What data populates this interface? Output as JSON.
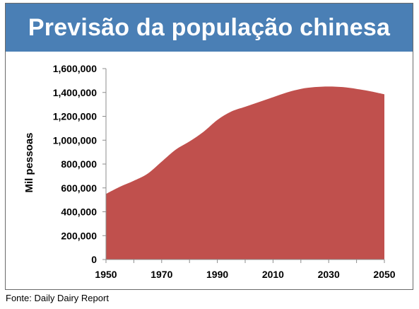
{
  "source_text": "Fonte: Daily Dairy Report",
  "colors": {
    "title_bg": "#4a7fb5",
    "area_fill": "#c0504d"
  },
  "chart_data": {
    "type": "area",
    "title": "Previsão da população chinesa",
    "xlabel": "",
    "ylabel": "Mil pessoas",
    "xlim": [
      1950,
      2050
    ],
    "ylim": [
      0,
      1600000
    ],
    "x_ticks": [
      "1950",
      "1970",
      "1990",
      "2010",
      "2030",
      "2050"
    ],
    "y_ticks": [
      "0",
      "200,000",
      "400,000",
      "600,000",
      "800,000",
      "1,000,000",
      "1,200,000",
      "1,400,000",
      "1,600,000"
    ],
    "grid": false,
    "legend": "none",
    "series": [
      {
        "x": [
          1950,
          1955,
          1960,
          1965,
          1970,
          1975,
          1980,
          1985,
          1990,
          1995,
          2000,
          2005,
          2010,
          2015,
          2020,
          2025,
          2030,
          2035,
          2040,
          2045,
          2050
        ],
        "values": [
          550000,
          610000,
          660000,
          720000,
          820000,
          920000,
          990000,
          1070000,
          1170000,
          1240000,
          1280000,
          1320000,
          1360000,
          1400000,
          1430000,
          1445000,
          1450000,
          1445000,
          1430000,
          1410000,
          1385000
        ]
      }
    ]
  }
}
